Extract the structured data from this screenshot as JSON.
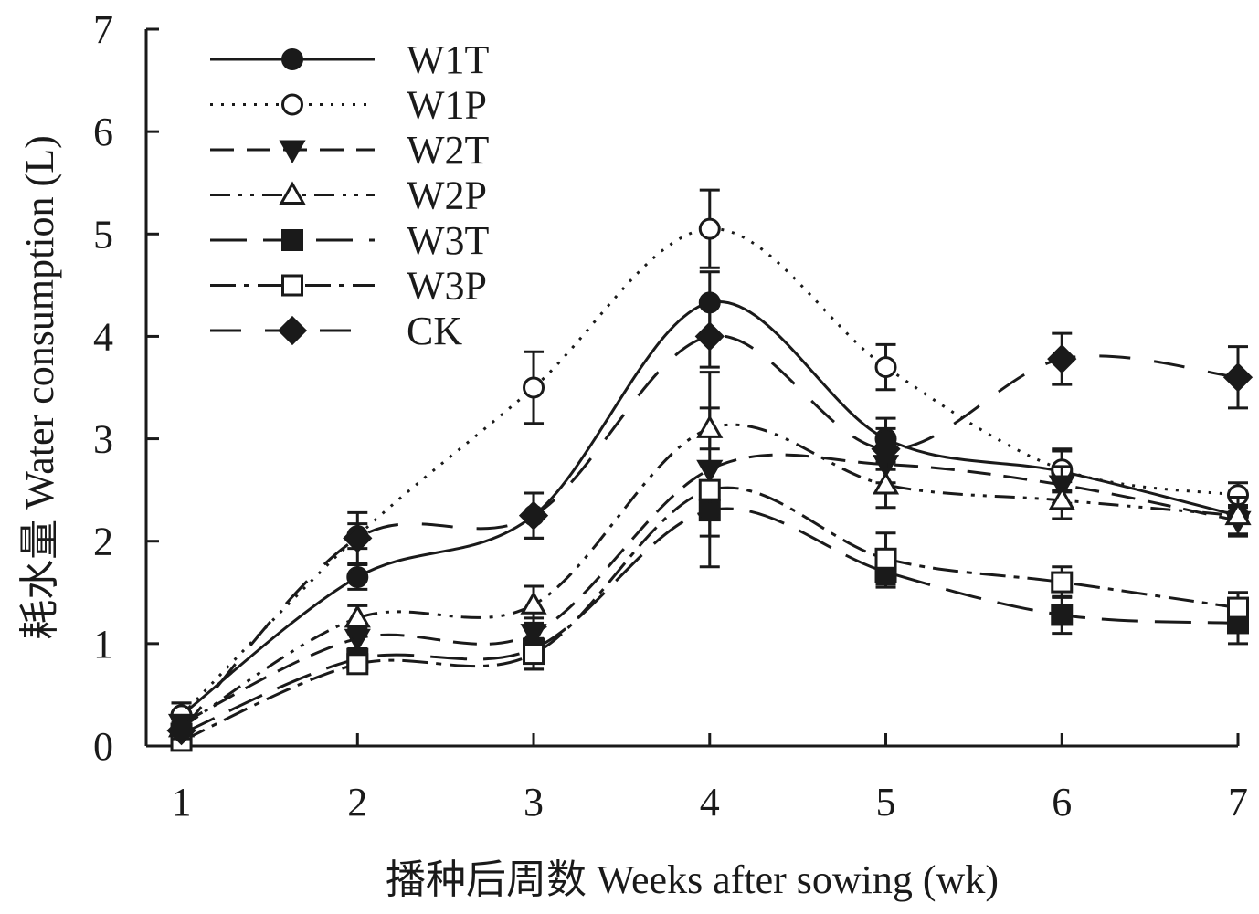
{
  "chart_data": {
    "type": "line",
    "title": "",
    "xlabel": "播种后周数 Weeks after sowing (wk)",
    "ylabel": "耗水量 Water consumption (L)",
    "x": [
      1,
      2,
      3,
      4,
      5,
      6,
      7
    ],
    "x_ticks": [
      "1",
      "2",
      "3",
      "4",
      "5",
      "6",
      "7"
    ],
    "xlim": [
      0.8,
      7
    ],
    "ylim": [
      0,
      7
    ],
    "y_ticks": [
      "0",
      "1",
      "2",
      "3",
      "4",
      "5",
      "6",
      "7"
    ],
    "grid": false,
    "legend_position": "top-left",
    "series": [
      {
        "name": "W1T",
        "values": [
          0.3,
          1.65,
          2.25,
          4.33,
          3.0,
          2.68,
          2.25
        ],
        "errors": [
          0.12,
          0.12,
          0.22,
          0.3,
          0.2,
          0.2,
          0.18
        ],
        "marker": "filled-circle",
        "line": "solid"
      },
      {
        "name": "W1P",
        "values": [
          0.3,
          2.05,
          3.5,
          5.05,
          3.7,
          2.7,
          2.45
        ],
        "errors": [
          0.12,
          0.12,
          0.35,
          0.38,
          0.22,
          0.2,
          0.12
        ],
        "marker": "open-circle",
        "line": "dotted"
      },
      {
        "name": "W2T",
        "values": [
          0.22,
          1.05,
          1.1,
          2.7,
          2.75,
          2.55,
          2.2
        ],
        "errors": [
          0.08,
          0.1,
          0.15,
          0.95,
          0.18,
          0.18,
          0.15
        ],
        "marker": "filled-triangle-down",
        "line": "dashed"
      },
      {
        "name": "W2P",
        "values": [
          0.18,
          1.25,
          1.38,
          3.1,
          2.55,
          2.4,
          2.25
        ],
        "errors": [
          0.08,
          0.12,
          0.18,
          0.2,
          0.22,
          0.18,
          0.18
        ],
        "marker": "open-triangle-up",
        "line": "dash-dot-dot"
      },
      {
        "name": "W3T",
        "values": [
          0.12,
          0.85,
          0.95,
          2.3,
          1.7,
          1.28,
          1.2
        ],
        "errors": [
          0.08,
          0.08,
          0.2,
          0.25,
          0.15,
          0.18,
          0.2
        ],
        "marker": "filled-square",
        "line": "long-dash"
      },
      {
        "name": "W3P",
        "values": [
          0.05,
          0.8,
          0.9,
          2.5,
          1.83,
          1.6,
          1.35
        ],
        "errors": [
          0.05,
          0.08,
          0.15,
          0.25,
          0.25,
          0.15,
          0.15
        ],
        "marker": "open-square",
        "line": "dash-dot"
      },
      {
        "name": "CK",
        "values": [
          0.15,
          2.03,
          2.25,
          4.0,
          2.9,
          3.78,
          3.6
        ],
        "errors": [
          0.08,
          0.25,
          0.22,
          0.3,
          0.2,
          0.25,
          0.3
        ],
        "marker": "filled-diamond",
        "line": "dash-long-gap"
      }
    ]
  }
}
